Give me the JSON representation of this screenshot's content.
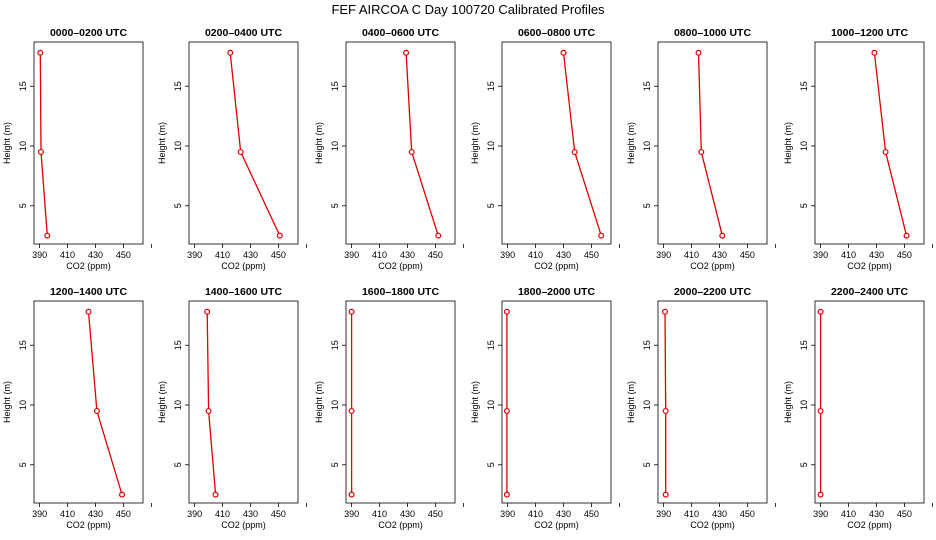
{
  "figure_title": "FEF AIRCOA C  Day 100720  Calibrated Profiles",
  "chart_data": {
    "type": "line",
    "title": "FEF AIRCOA C  Day 100720  Calibrated Profiles",
    "xlabel": "CO2 (ppm)",
    "ylabel": "Height (m)",
    "xlim": [
      386,
      464
    ],
    "ylim": [
      1.8,
      18.7
    ],
    "xticks": [
      "390",
      "410",
      "430",
      "450"
    ],
    "yticks": [
      "5",
      "10",
      "15"
    ],
    "heights": [
      17.8,
      9.5,
      2.5
    ],
    "panels": [
      {
        "label": "0000–0200 UTC",
        "values": [
          390.5,
          391.0,
          395.5
        ]
      },
      {
        "label": "0200–0400 UTC",
        "values": [
          415.5,
          423.0,
          451.0
        ]
      },
      {
        "label": "0400–0600 UTC",
        "values": [
          429.0,
          433.0,
          452.0
        ]
      },
      {
        "label": "0600–0800 UTC",
        "values": [
          430.0,
          438.0,
          457.0
        ]
      },
      {
        "label": "0800–1000 UTC",
        "values": [
          415.0,
          417.0,
          432.0
        ]
      },
      {
        "label": "1000–1200 UTC",
        "values": [
          428.5,
          436.5,
          451.5
        ]
      },
      {
        "label": "1200–1400 UTC",
        "values": [
          425.0,
          431.0,
          449.0
        ]
      },
      {
        "label": "1400–1600 UTC",
        "values": [
          399.0,
          400.0,
          405.0
        ]
      },
      {
        "label": "1600–1800 UTC",
        "values": [
          390.0,
          390.0,
          390.0
        ]
      },
      {
        "label": "1800–2000 UTC",
        "values": [
          389.5,
          389.5,
          389.5
        ]
      },
      {
        "label": "2000–2200 UTC",
        "values": [
          391.0,
          391.5,
          391.5
        ]
      },
      {
        "label": "2200–2400 UTC",
        "values": [
          390.0,
          390.0,
          390.0
        ]
      }
    ],
    "color": "#e00000"
  }
}
